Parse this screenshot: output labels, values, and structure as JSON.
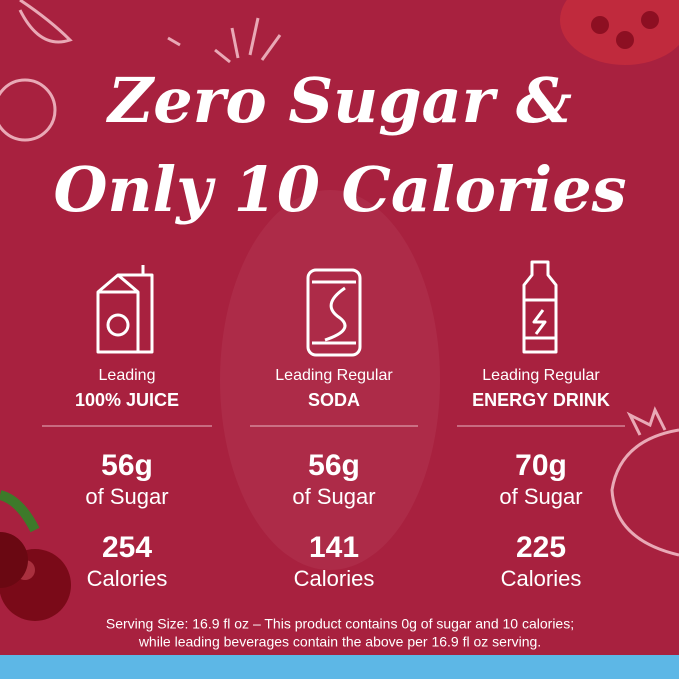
{
  "header": {
    "lines": [
      "Zero Sugar &",
      "Only 10 Calories"
    ]
  },
  "columns": [
    {
      "label_top": "Leading",
      "label_bottom": "100% JUICE",
      "sugar": "56g",
      "sugar_unit": "of Sugar",
      "calories": "254",
      "calories_unit": "Calories"
    },
    {
      "label_top": "Leading Regular",
      "label_bottom": "SODA",
      "sugar": "56g",
      "sugar_unit": "of Sugar",
      "calories": "141",
      "calories_unit": "Calories"
    },
    {
      "label_top": "Leading Regular",
      "label_bottom": "ENERGY DRINK",
      "sugar": "70g",
      "sugar_unit": "of Sugar",
      "calories": "225",
      "calories_unit": "Calories"
    }
  ],
  "footer": {
    "lines": [
      "Serving Size: 16.9 fl oz – This product contains 0g of sugar and 10 calories;",
      "while leading beverages contain the above per 16.9 fl oz serving."
    ]
  }
}
